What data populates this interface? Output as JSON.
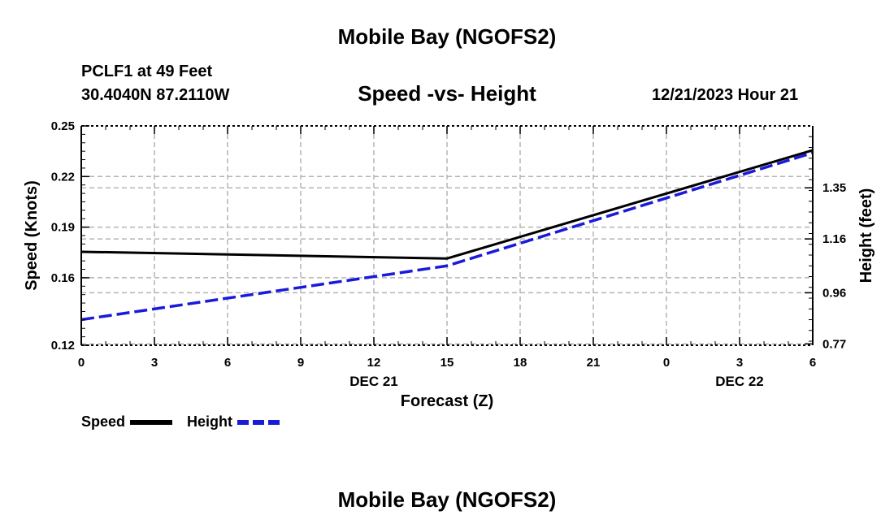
{
  "page": {
    "title": "Mobile Bay (NGOFS2)",
    "footer_title": "Mobile Bay (NGOFS2)",
    "station_line": "PCLF1 at 49 Feet",
    "coords_line": "30.4040N  87.2110W",
    "chart_title": "Speed -vs- Height",
    "timestamp": "12/21/2023 Hour 21"
  },
  "colors": {
    "speed": "#000000",
    "height": "#1a1adb",
    "grid": "#b4b4b4"
  },
  "chart_data": {
    "type": "line",
    "title": "Speed -vs- Height",
    "xlabel": "Forecast (Z)",
    "ylabel": "Speed (Knots)",
    "y2label": "Height (feet)",
    "x_ticks": [
      "0",
      "3",
      "6",
      "9",
      "12",
      "15",
      "18",
      "21",
      "0",
      "3",
      "6"
    ],
    "x_ticks_hours": [
      0,
      3,
      6,
      9,
      12,
      15,
      18,
      21,
      24,
      27,
      30
    ],
    "date_labels": [
      {
        "label": "DEC 21",
        "hour": 12
      },
      {
        "label": "DEC 22",
        "hour": 27
      }
    ],
    "ylim": [
      0.12,
      0.25
    ],
    "y_ticks": [
      "0.12",
      "0.16",
      "0.19",
      "0.22",
      "0.25"
    ],
    "y_tick_values": [
      0.12,
      0.16,
      0.19,
      0.22,
      0.25
    ],
    "y2lim": [
      0.765,
      1.58
    ],
    "y2_ticks": [
      "0.77",
      "0.96",
      "1.16",
      "1.35"
    ],
    "y2_tick_values": [
      0.77,
      0.96,
      1.16,
      1.35
    ],
    "grid": true,
    "legend_position": "bottom-left",
    "series": [
      {
        "name": "Speed",
        "axis": "left",
        "style": "solid",
        "x": [
          0,
          15,
          30
        ],
        "y": [
          0.1754,
          0.1714,
          0.2356
        ]
      },
      {
        "name": "Height",
        "axis": "right",
        "style": "dashed",
        "x": [
          0,
          15,
          30
        ],
        "y": [
          0.86,
          1.06,
          1.48
        ]
      }
    ]
  }
}
